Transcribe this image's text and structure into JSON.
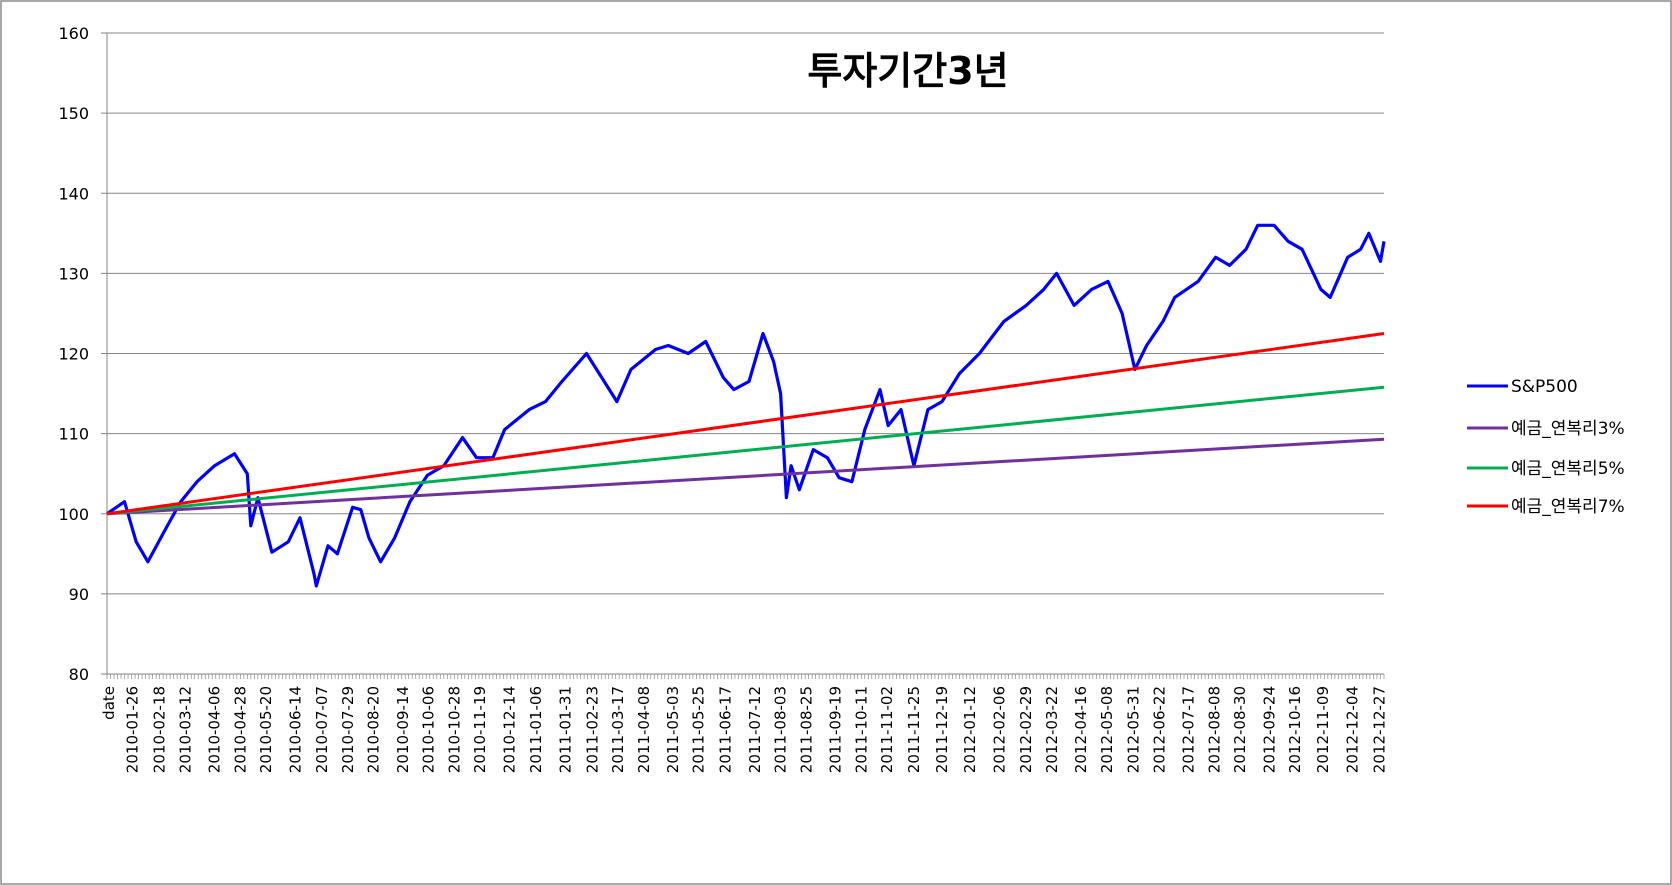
{
  "chart_data": {
    "type": "line",
    "title": "투자기간3년",
    "xlabel": "",
    "ylabel": "",
    "ylim": [
      80,
      160
    ],
    "yticks": [
      80,
      90,
      100,
      110,
      120,
      130,
      140,
      150,
      160
    ],
    "grid": "horizontal",
    "legend_position": "right",
    "x_start": "2010-01-04",
    "x_end": "2012-12-31",
    "x_first_label": "date",
    "xtick_labels": [
      "2010-01-26",
      "2010-02-18",
      "2010-03-12",
      "2010-04-06",
      "2010-04-28",
      "2010-05-20",
      "2010-06-14",
      "2010-07-07",
      "2010-07-29",
      "2010-08-20",
      "2010-09-14",
      "2010-10-06",
      "2010-10-28",
      "2010-11-19",
      "2010-12-14",
      "2011-01-06",
      "2011-01-31",
      "2011-02-23",
      "2011-03-17",
      "2011-04-08",
      "2011-05-03",
      "2011-05-25",
      "2011-06-17",
      "2011-07-12",
      "2011-08-03",
      "2011-08-25",
      "2011-09-19",
      "2011-10-11",
      "2011-11-02",
      "2011-11-25",
      "2011-12-19",
      "2012-01-12",
      "2012-02-06",
      "2012-02-29",
      "2012-03-22",
      "2012-04-16",
      "2012-05-08",
      "2012-05-31",
      "2012-06-22",
      "2012-07-17",
      "2012-08-08",
      "2012-08-30",
      "2012-09-24",
      "2012-10-16",
      "2012-11-09",
      "2012-12-04",
      "2012-12-27"
    ],
    "series": [
      {
        "name": "S&P500",
        "color": "#0000ff",
        "x": [
          "2010-01-04",
          "2010-01-19",
          "2010-01-29",
          "2010-02-08",
          "2010-02-22",
          "2010-03-08",
          "2010-03-22",
          "2010-04-06",
          "2010-04-23",
          "2010-05-04",
          "2010-05-07",
          "2010-05-13",
          "2010-05-25",
          "2010-06-08",
          "2010-06-18",
          "2010-06-30",
          "2010-07-02",
          "2010-07-12",
          "2010-07-20",
          "2010-08-02",
          "2010-08-09",
          "2010-08-16",
          "2010-08-26",
          "2010-09-07",
          "2010-09-20",
          "2010-10-05",
          "2010-10-19",
          "2010-11-04",
          "2010-11-16",
          "2010-11-30",
          "2010-12-10",
          "2010-12-31",
          "2011-01-14",
          "2011-01-28",
          "2011-02-18",
          "2011-03-03",
          "2011-03-16",
          "2011-03-28",
          "2011-04-18",
          "2011-04-29",
          "2011-05-16",
          "2011-05-31",
          "2011-06-15",
          "2011-06-24",
          "2011-07-07",
          "2011-07-19",
          "2011-07-28",
          "2011-08-03",
          "2011-08-08",
          "2011-08-12",
          "2011-08-19",
          "2011-08-31",
          "2011-09-12",
          "2011-09-22",
          "2011-10-03",
          "2011-10-14",
          "2011-10-27",
          "2011-11-03",
          "2011-11-14",
          "2011-11-25",
          "2011-12-07",
          "2011-12-19",
          "2012-01-03",
          "2012-01-20",
          "2012-02-10",
          "2012-02-29",
          "2012-03-15",
          "2012-03-26",
          "2012-04-10",
          "2012-04-25",
          "2012-05-09",
          "2012-05-21",
          "2012-06-01",
          "2012-06-11",
          "2012-06-25",
          "2012-07-05",
          "2012-07-25",
          "2012-08-09",
          "2012-08-21",
          "2012-09-04",
          "2012-09-14",
          "2012-09-28",
          "2012-10-10",
          "2012-10-22",
          "2012-11-07",
          "2012-11-15",
          "2012-11-30",
          "2012-12-11",
          "2012-12-18",
          "2012-12-28",
          "2012-12-31"
        ],
        "values": [
          100,
          101.5,
          96.5,
          94,
          97.8,
          101.5,
          104,
          106,
          107.5,
          105,
          98.5,
          102,
          95.2,
          96.5,
          99.5,
          92.5,
          91,
          96,
          95,
          100.8,
          100.5,
          97,
          94,
          97,
          101.5,
          104.8,
          106,
          109.5,
          107,
          107,
          110.5,
          113,
          114,
          116.5,
          120,
          117,
          114,
          118,
          120.5,
          121,
          120,
          121.5,
          117,
          115.5,
          116.5,
          122.5,
          119,
          115,
          102,
          106,
          103,
          108,
          107,
          104.5,
          104,
          110.5,
          115.5,
          111,
          113,
          106,
          113,
          114,
          117.5,
          120,
          124,
          126,
          128,
          130,
          126,
          128,
          129,
          125,
          118,
          121,
          124,
          127,
          129,
          132,
          131,
          133,
          136,
          136,
          134,
          133,
          128,
          127,
          132,
          133,
          135,
          131.5,
          134
        ]
      },
      {
        "name": "예금_연복리3%",
        "color": "#7030a0",
        "x": [
          "2010-01-04",
          "2012-12-31"
        ],
        "values": [
          100,
          109.3
        ]
      },
      {
        "name": "예금_연복리5%",
        "color": "#00b050",
        "x": [
          "2010-01-04",
          "2012-12-31"
        ],
        "values": [
          100,
          115.8
        ]
      },
      {
        "name": "예금_연복리7%",
        "color": "#ff0000",
        "x": [
          "2010-01-04",
          "2012-12-31"
        ],
        "values": [
          100,
          122.5
        ]
      }
    ]
  }
}
